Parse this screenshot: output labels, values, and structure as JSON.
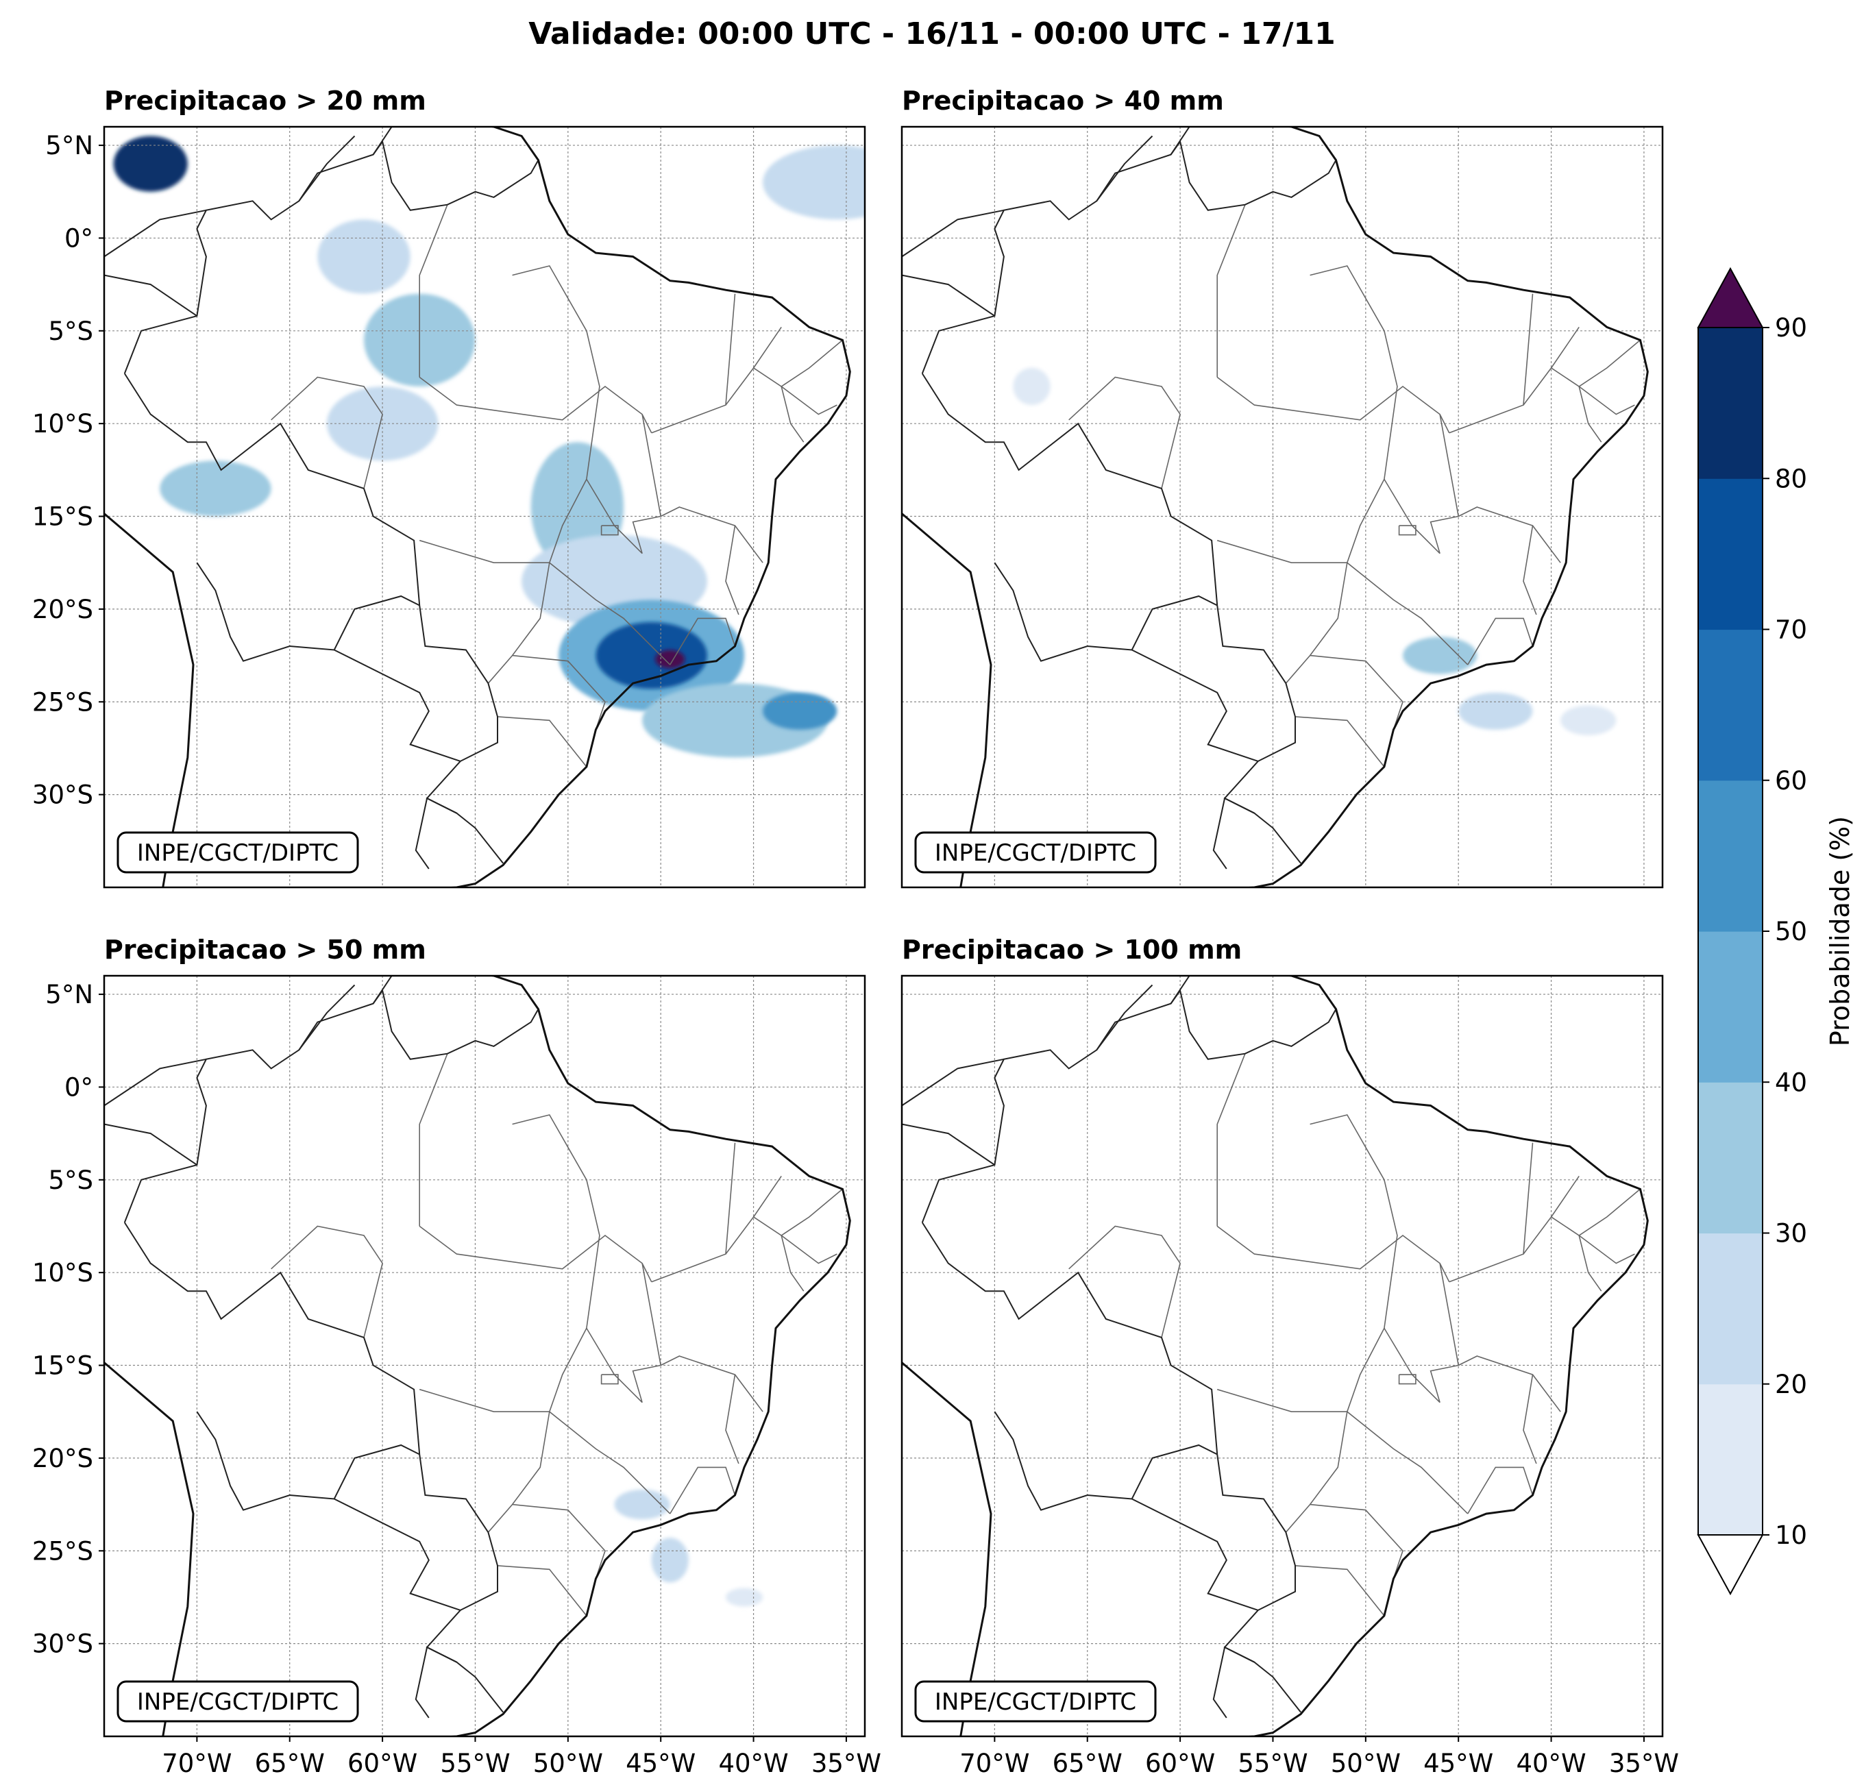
{
  "title": "Validade: 00:00 UTC - 16/11 - 00:00 UTC - 17/11",
  "credit": "INPE/CGCT/DIPTC",
  "panels": [
    {
      "title": "Precipitacao > 20 mm"
    },
    {
      "title": "Precipitacao > 40 mm"
    },
    {
      "title": "Precipitacao > 50 mm"
    },
    {
      "title": "Precipitacao > 100 mm"
    }
  ],
  "axes": {
    "lat_labels": [
      "5°N",
      "0°",
      "5°S",
      "10°S",
      "15°S",
      "20°S",
      "25°S",
      "30°S"
    ],
    "lon_labels": [
      "70°W",
      "65°W",
      "60°W",
      "55°W",
      "50°W",
      "45°W",
      "40°W",
      "35°W"
    ],
    "lon_range": [
      -75,
      -34
    ],
    "lat_range": [
      -35,
      6
    ]
  },
  "colorbar": {
    "label": "Probabilidade (%)",
    "ticks": [
      "10",
      "20",
      "30",
      "40",
      "50",
      "60",
      "70",
      "80",
      "90"
    ],
    "colors": [
      "#dfe9f5",
      "#c6dbef",
      "#9ecae1",
      "#6baed6",
      "#4292c6",
      "#2171b5",
      "#08519c",
      "#08306b"
    ],
    "extend_max_color": "#4a0a4f",
    "extend_min_color": "#ffffff"
  },
  "chart_data": {
    "type": "heatmap",
    "title": "Validade: 00:00 UTC - 16/11 - 00:00 UTC - 17/11",
    "value_unit": "Probabilidade (%)",
    "levels": [
      10,
      20,
      30,
      40,
      50,
      60,
      70,
      80,
      90
    ],
    "panels": [
      {
        "title": "Precipitacao > 20 mm",
        "areas": [
          {
            "lon": -72.5,
            "lat": 4,
            "rx": 2,
            "ry": 1.5,
            "value": 80
          },
          {
            "lon": -61,
            "lat": -1,
            "rx": 2.5,
            "ry": 2,
            "value": 20
          },
          {
            "lon": -58,
            "lat": -5.5,
            "rx": 3,
            "ry": 2.5,
            "value": 30
          },
          {
            "lon": -60,
            "lat": -10,
            "rx": 3,
            "ry": 2,
            "value": 20
          },
          {
            "lon": -69,
            "lat": -13.5,
            "rx": 3,
            "ry": 1.5,
            "value": 30
          },
          {
            "lon": -49.5,
            "lat": -14.5,
            "rx": 2.5,
            "ry": 3.5,
            "value": 30
          },
          {
            "lon": -47.5,
            "lat": -18.5,
            "rx": 5,
            "ry": 2.5,
            "value": 20
          },
          {
            "lon": -45.5,
            "lat": -22.5,
            "rx": 5,
            "ry": 3,
            "value": 40
          },
          {
            "lon": -45.5,
            "lat": -22.5,
            "rx": 3,
            "ry": 1.8,
            "value": 70
          },
          {
            "lon": -44.5,
            "lat": -22.7,
            "rx": 0.8,
            "ry": 0.5,
            "value": 90
          },
          {
            "lon": -41,
            "lat": -26,
            "rx": 5,
            "ry": 2,
            "value": 30
          },
          {
            "lon": -37.5,
            "lat": -25.5,
            "rx": 2,
            "ry": 1,
            "value": 50
          },
          {
            "lon": -35.5,
            "lat": 3,
            "rx": 4,
            "ry": 2,
            "value": 20
          }
        ]
      },
      {
        "title": "Precipitacao > 40 mm",
        "areas": [
          {
            "lon": -46,
            "lat": -22.5,
            "rx": 2,
            "ry": 1,
            "value": 30
          },
          {
            "lon": -43,
            "lat": -25.5,
            "rx": 2,
            "ry": 1,
            "value": 20
          },
          {
            "lon": -38,
            "lat": -26,
            "rx": 1.5,
            "ry": 0.8,
            "value": 10
          },
          {
            "lon": -68,
            "lat": -8,
            "rx": 1,
            "ry": 1,
            "value": 10
          }
        ]
      },
      {
        "title": "Precipitacao > 50 mm",
        "areas": [
          {
            "lon": -46,
            "lat": -22.5,
            "rx": 1.5,
            "ry": 0.8,
            "value": 20
          },
          {
            "lon": -44.5,
            "lat": -25.5,
            "rx": 1,
            "ry": 1.2,
            "value": 20
          },
          {
            "lon": -40.5,
            "lat": -27.5,
            "rx": 1,
            "ry": 0.5,
            "value": 10
          }
        ]
      },
      {
        "title": "Precipitacao > 100 mm",
        "areas": []
      }
    ]
  }
}
